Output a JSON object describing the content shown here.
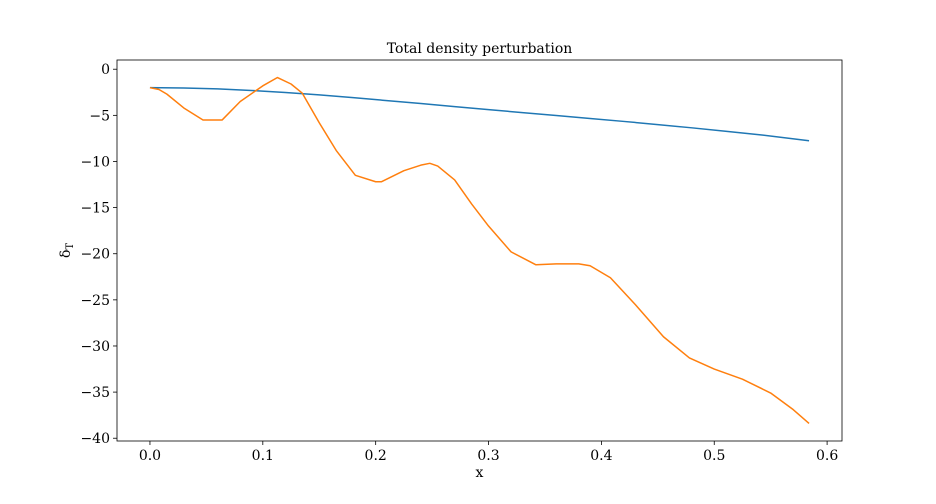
{
  "chart_data": {
    "type": "line",
    "title": "Total density perturbation",
    "xlabel": "x",
    "ylabel": "δ",
    "ylabel_subscript": "T",
    "xlim": [
      -0.0292,
      0.6132
    ],
    "ylim": [
      -40.3,
      1.0
    ],
    "xticks": [
      0.0,
      0.1,
      0.2,
      0.3,
      0.4,
      0.5,
      0.6
    ],
    "xtick_labels": [
      "0.0",
      "0.1",
      "0.2",
      "0.3",
      "0.4",
      "0.5",
      "0.6"
    ],
    "yticks": [
      0,
      -5,
      -10,
      -15,
      -20,
      -25,
      -30,
      -35,
      -40
    ],
    "ytick_labels": [
      "0",
      "−5",
      "−10",
      "−15",
      "−20",
      "−25",
      "−30",
      "−35",
      "−40"
    ],
    "grid": false,
    "series": [
      {
        "color": "#1f77b4",
        "x": [
          0.0,
          0.03,
          0.06,
          0.09,
          0.12,
          0.15,
          0.18,
          0.21,
          0.24,
          0.27,
          0.3,
          0.33,
          0.36,
          0.39,
          0.42,
          0.45,
          0.48,
          0.51,
          0.54,
          0.584
        ],
        "y": [
          -2.0,
          -2.04,
          -2.13,
          -2.3,
          -2.52,
          -2.78,
          -3.08,
          -3.4,
          -3.72,
          -4.05,
          -4.38,
          -4.7,
          -5.02,
          -5.34,
          -5.66,
          -6.0,
          -6.35,
          -6.72,
          -7.1,
          -7.75
        ]
      },
      {
        "color": "#ff7f0e",
        "x": [
          0.0,
          0.008,
          0.015,
          0.03,
          0.047,
          0.064,
          0.08,
          0.1,
          0.113,
          0.125,
          0.135,
          0.15,
          0.165,
          0.182,
          0.2,
          0.205,
          0.225,
          0.24,
          0.248,
          0.255,
          0.27,
          0.285,
          0.3,
          0.32,
          0.342,
          0.36,
          0.38,
          0.39,
          0.408,
          0.43,
          0.455,
          0.478,
          0.5,
          0.525,
          0.55,
          0.57,
          0.584
        ],
        "y": [
          -2.0,
          -2.2,
          -2.7,
          -4.2,
          -5.5,
          -5.5,
          -3.5,
          -1.8,
          -0.9,
          -1.6,
          -2.6,
          -5.8,
          -8.8,
          -11.5,
          -12.2,
          -12.2,
          -11.0,
          -10.4,
          -10.2,
          -10.5,
          -12.0,
          -14.6,
          -17.0,
          -19.8,
          -21.2,
          -21.1,
          -21.1,
          -21.3,
          -22.6,
          -25.5,
          -29.0,
          -31.3,
          -32.5,
          -33.6,
          -35.1,
          -36.9,
          -38.4
        ]
      }
    ]
  }
}
